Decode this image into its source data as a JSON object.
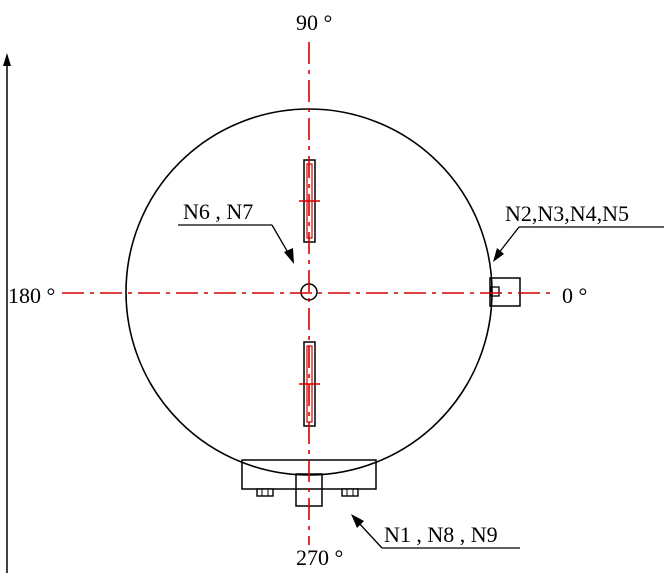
{
  "angles": {
    "top": "90 °",
    "left": "180 °",
    "right": "0 °",
    "bottom": "270 °"
  },
  "nozzle_labels": {
    "center": "N6 , N7",
    "right": "N2,N3,N4,N5",
    "bottom": "N1 , N8 , N9"
  },
  "colors": {
    "centerline": "#d40000",
    "outline": "#000000",
    "background": "#ffffff"
  }
}
